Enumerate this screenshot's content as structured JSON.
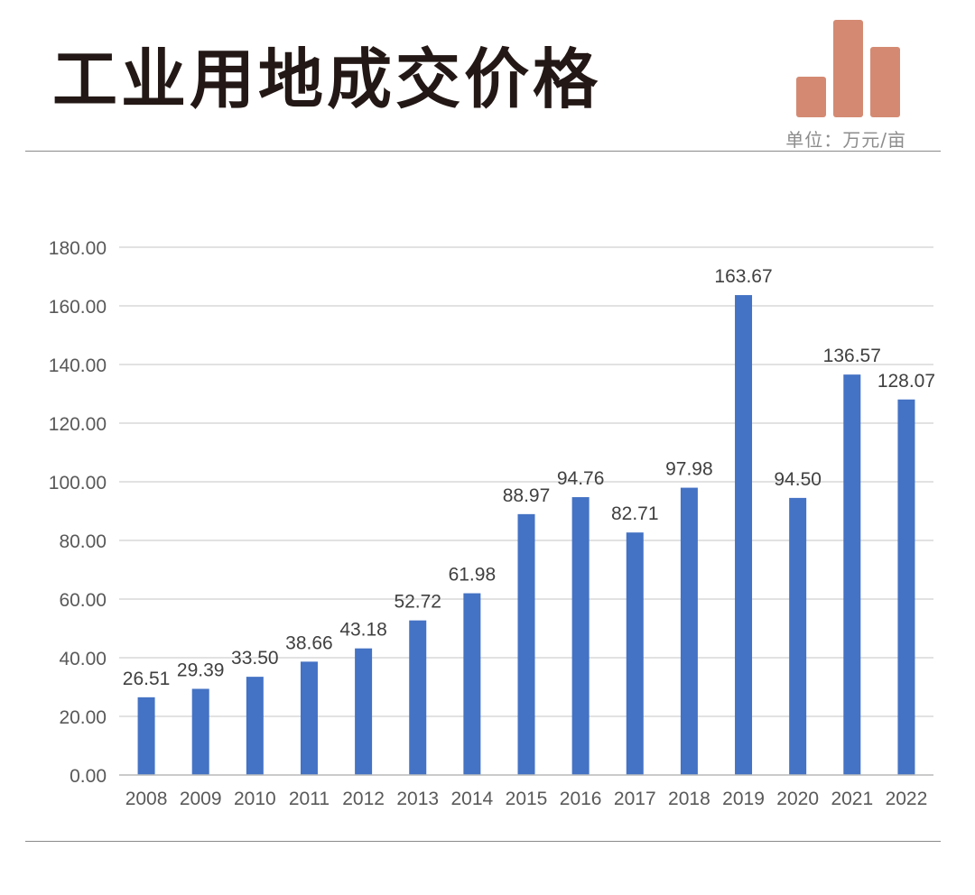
{
  "header": {
    "title": "工业用地成交价格",
    "unit": "单位：万元/亩"
  },
  "colors": {
    "bar": "#4472c4",
    "logo": "#d48a72",
    "title": "#231815",
    "grid": "#d9d9d9",
    "axis_text": "#595959"
  },
  "logo": {
    "icon": "bar-chart-logo-icon",
    "bar_levels": [
      0.42,
      1.0,
      0.72
    ]
  },
  "chart_data": {
    "type": "bar",
    "categories": [
      "2008",
      "2009",
      "2010",
      "2011",
      "2012",
      "2013",
      "2014",
      "2015",
      "2016",
      "2017",
      "2018",
      "2019",
      "2020",
      "2021",
      "2022"
    ],
    "values": [
      26.51,
      29.39,
      33.5,
      38.66,
      43.18,
      52.72,
      61.98,
      88.97,
      94.76,
      82.71,
      97.98,
      163.67,
      94.5,
      136.57,
      128.07
    ],
    "value_labels": [
      "26.51",
      "29.39",
      "33.50",
      "38.66",
      "43.18",
      "52.72",
      "61.98",
      "88.97",
      "94.76",
      "82.71",
      "97.98",
      "163.67",
      "94.50",
      "136.57",
      "128.07"
    ],
    "yticks": [
      "0.00",
      "20.00",
      "40.00",
      "60.00",
      "80.00",
      "100.00",
      "120.00",
      "140.00",
      "160.00",
      "180.00"
    ],
    "ylim": [
      0,
      180
    ],
    "grid": true,
    "legend": "none",
    "title": "",
    "xlabel": "",
    "ylabel": ""
  }
}
